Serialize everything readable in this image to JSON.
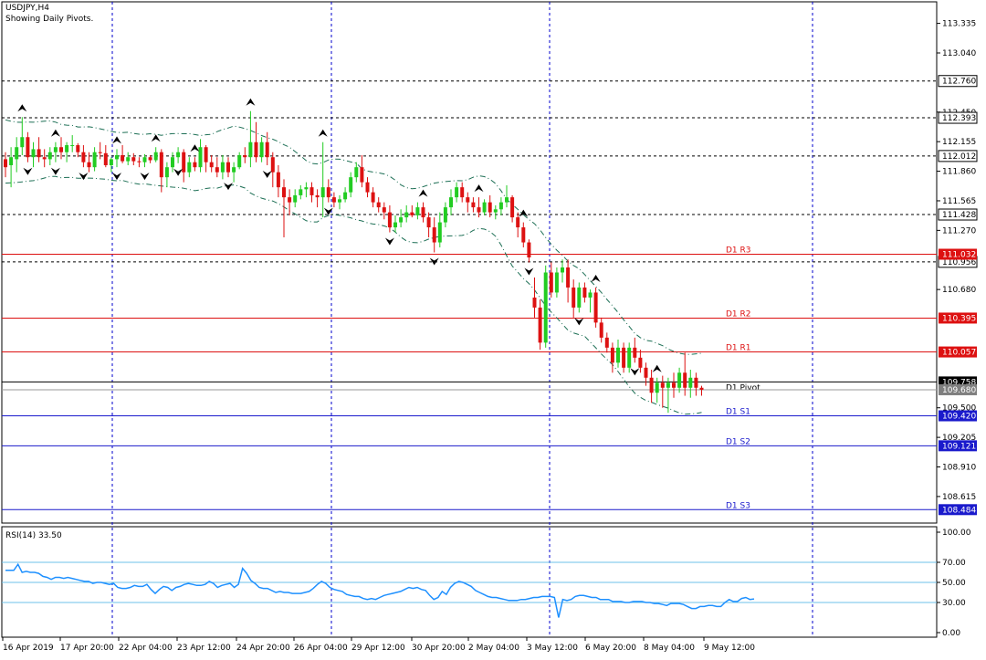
{
  "symbol_label": "USDJPY,H4",
  "indicator_label": "Showing Daily Pivots.",
  "rsi_label": "RSI(14) 33.50",
  "colors": {
    "bull": "#22cc22",
    "bear": "#dd1111",
    "resistance": "#dd1111",
    "support": "#1a1acc",
    "fractal": "#000000",
    "bands": "#1d6f55",
    "rsi_line": "#1e90ff",
    "rsi_levels": "#6cc0e8",
    "grid": "#0000cc",
    "price_tag": "#000000",
    "bid_tag": "#7f7f7f"
  },
  "chart_data": [
    {
      "type": "candlestick",
      "title": "USDJPY,H4",
      "ylim": [
        108.35,
        113.55
      ],
      "price_axis_ticks": [
        "113.335",
        "113.040",
        "112.450",
        "112.155",
        "111.860",
        "111.565",
        "111.270",
        "110.680",
        "109.500",
        "109.205",
        "108.910",
        "108.615"
      ],
      "time_axis_labels": [
        "16 Apr 2019",
        "17 Apr 20:00",
        "22 Apr 04:00",
        "23 Apr 12:00",
        "24 Apr 20:00",
        "26 Apr 04:00",
        "29 Apr 12:00",
        "30 Apr 20:00",
        "2 May 04:00",
        "3 May 12:00",
        "6 May 20:00",
        "8 May 04:00",
        "9 May 12:00"
      ],
      "grid": true,
      "dotted_levels": [
        {
          "value": 112.76,
          "label": "112.760"
        },
        {
          "value": 112.393,
          "label": "112.393"
        },
        {
          "value": 112.012,
          "label": "112.012"
        },
        {
          "value": 111.428,
          "label": "111.428"
        },
        {
          "value": 110.956,
          "label": "110.956"
        }
      ],
      "pivot_levels": [
        {
          "name": "D1  R3",
          "value": 111.032,
          "label": "111.032",
          "kind": "resistance"
        },
        {
          "name": "D1  R2",
          "value": 110.395,
          "label": "110.395",
          "kind": "resistance"
        },
        {
          "name": "D1  R1",
          "value": 110.057,
          "label": "110.057",
          "kind": "resistance"
        },
        {
          "name": "D1  Pivot",
          "value": 109.758,
          "label": "109.758",
          "kind": "pivot"
        },
        {
          "name": "D1  S1",
          "value": 109.42,
          "label": "109.420",
          "kind": "support"
        },
        {
          "name": "D1  S2",
          "value": 109.121,
          "label": "109.121",
          "kind": "support"
        },
        {
          "name": "D1  S3",
          "value": 108.484,
          "label": "108.484",
          "kind": "support"
        }
      ],
      "bid_price": {
        "value": 109.68,
        "label": "109.680"
      },
      "candles": [
        [
          111.98,
          112.05,
          111.8,
          111.9
        ],
        [
          111.92,
          112.1,
          111.7,
          112.0
        ],
        [
          111.98,
          112.2,
          111.85,
          112.1
        ],
        [
          112.1,
          112.4,
          112.02,
          112.2
        ],
        [
          112.2,
          112.25,
          111.95,
          112.0
        ],
        [
          112.0,
          112.15,
          111.9,
          112.08
        ],
        [
          112.08,
          112.2,
          111.95,
          112.0
        ],
        [
          112.0,
          112.08,
          111.9,
          111.98
        ],
        [
          111.98,
          112.1,
          111.92,
          112.05
        ],
        [
          112.05,
          112.15,
          111.95,
          112.1
        ],
        [
          112.1,
          112.2,
          111.98,
          112.05
        ],
        [
          112.05,
          112.15,
          111.95,
          112.12
        ],
        [
          112.12,
          112.22,
          112.05,
          112.12
        ],
        [
          112.12,
          112.14,
          112.0,
          112.05
        ],
        [
          112.05,
          112.12,
          111.9,
          111.95
        ],
        [
          111.95,
          112.05,
          111.85,
          111.9
        ],
        [
          111.9,
          112.1,
          111.86,
          112.05
        ],
        [
          112.05,
          112.15,
          111.98,
          112.04
        ],
        [
          112.04,
          112.12,
          111.9,
          111.92
        ],
        [
          111.92,
          112.0,
          111.85,
          111.98
        ],
        [
          111.98,
          112.08,
          111.9,
          112.02
        ],
        [
          112.02,
          112.12,
          111.94,
          111.96
        ],
        [
          111.96,
          112.05,
          111.92,
          112.0
        ],
        [
          112.0,
          112.04,
          111.92,
          111.96
        ],
        [
          111.96,
          112.0,
          111.9,
          111.95
        ],
        [
          111.95,
          112.03,
          111.9,
          112.0
        ],
        [
          112.0,
          112.02,
          111.94,
          111.97
        ],
        [
          111.97,
          112.1,
          111.95,
          112.05
        ],
        [
          112.05,
          112.08,
          111.65,
          111.8
        ],
        [
          111.8,
          111.95,
          111.7,
          111.9
        ],
        [
          111.9,
          112.05,
          111.85,
          112.0
        ],
        [
          112.0,
          112.1,
          111.94,
          112.05
        ],
        [
          112.05,
          112.08,
          111.75,
          111.85
        ],
        [
          111.85,
          112.0,
          111.8,
          111.95
        ],
        [
          111.95,
          112.0,
          111.86,
          111.9
        ],
        [
          111.9,
          112.18,
          111.85,
          112.1
        ],
        [
          112.1,
          112.12,
          111.85,
          111.95
        ],
        [
          111.95,
          112.02,
          111.85,
          111.9
        ],
        [
          111.9,
          112.0,
          111.8,
          111.85
        ],
        [
          111.85,
          112.02,
          111.78,
          111.95
        ],
        [
          111.95,
          112.0,
          111.8,
          111.85
        ],
        [
          111.85,
          111.95,
          111.75,
          111.9
        ],
        [
          111.9,
          112.05,
          111.88,
          112.02
        ],
        [
          112.02,
          112.1,
          111.94,
          112.0
        ],
        [
          112.0,
          112.46,
          111.9,
          112.15
        ],
        [
          112.15,
          112.35,
          111.95,
          112.0
        ],
        [
          112.0,
          112.2,
          111.95,
          112.15
        ],
        [
          112.15,
          112.25,
          111.92,
          112.0
        ],
        [
          112.0,
          112.05,
          111.7,
          111.85
        ],
        [
          111.85,
          111.92,
          111.6,
          111.7
        ],
        [
          111.7,
          111.78,
          111.2,
          111.6
        ],
        [
          111.6,
          111.68,
          111.42,
          111.55
        ],
        [
          111.55,
          111.68,
          111.5,
          111.62
        ],
        [
          111.62,
          111.72,
          111.58,
          111.68
        ],
        [
          111.68,
          111.75,
          111.6,
          111.7
        ],
        [
          111.7,
          111.75,
          111.55,
          111.62
        ],
        [
          111.62,
          111.68,
          111.5,
          111.6
        ],
        [
          111.6,
          112.15,
          111.4,
          111.7
        ],
        [
          111.7,
          111.78,
          111.55,
          111.6
        ],
        [
          111.6,
          111.65,
          111.5,
          111.55
        ],
        [
          111.55,
          111.62,
          111.48,
          111.58
        ],
        [
          111.58,
          111.7,
          111.55,
          111.65
        ],
        [
          111.65,
          111.85,
          111.6,
          111.8
        ],
        [
          111.8,
          111.95,
          111.75,
          111.9
        ],
        [
          111.9,
          112.02,
          111.7,
          111.75
        ],
        [
          111.75,
          111.8,
          111.6,
          111.65
        ],
        [
          111.65,
          111.7,
          111.5,
          111.55
        ],
        [
          111.55,
          111.6,
          111.45,
          111.5
        ],
        [
          111.5,
          111.55,
          111.38,
          111.45
        ],
        [
          111.45,
          111.52,
          111.25,
          111.3
        ],
        [
          111.3,
          111.42,
          111.25,
          111.35
        ],
        [
          111.35,
          111.48,
          111.3,
          111.4
        ],
        [
          111.4,
          111.52,
          111.35,
          111.45
        ],
        [
          111.45,
          111.52,
          111.4,
          111.42
        ],
        [
          111.42,
          111.55,
          111.38,
          111.5
        ],
        [
          111.5,
          111.55,
          111.35,
          111.4
        ],
        [
          111.4,
          111.45,
          111.2,
          111.3
        ],
        [
          111.3,
          111.4,
          111.05,
          111.15
        ],
        [
          111.15,
          111.45,
          111.1,
          111.35
        ],
        [
          111.35,
          111.55,
          111.3,
          111.5
        ],
        [
          111.5,
          111.68,
          111.42,
          111.6
        ],
        [
          111.6,
          111.75,
          111.55,
          111.7
        ],
        [
          111.7,
          111.75,
          111.55,
          111.6
        ],
        [
          111.6,
          111.65,
          111.45,
          111.55
        ],
        [
          111.55,
          111.6,
          111.45,
          111.5
        ],
        [
          111.5,
          111.6,
          111.4,
          111.45
        ],
        [
          111.45,
          111.58,
          111.42,
          111.55
        ],
        [
          111.55,
          111.62,
          111.4,
          111.45
        ],
        [
          111.45,
          111.52,
          111.38,
          111.48
        ],
        [
          111.48,
          111.6,
          111.42,
          111.55
        ],
        [
          111.55,
          111.72,
          111.5,
          111.6
        ],
        [
          111.6,
          111.62,
          111.35,
          111.4
        ],
        [
          111.4,
          111.45,
          111.2,
          111.3
        ],
        [
          111.3,
          111.35,
          111.1,
          111.15
        ],
        [
          111.15,
          111.18,
          110.95,
          111.0
        ],
        [
          110.6,
          110.8,
          110.4,
          110.5
        ],
        [
          110.5,
          110.58,
          110.08,
          110.15
        ],
        [
          110.15,
          110.92,
          110.1,
          110.85
        ],
        [
          110.85,
          110.95,
          110.6,
          110.65
        ],
        [
          110.65,
          110.9,
          110.6,
          110.85
        ],
        [
          110.85,
          110.98,
          110.75,
          110.9
        ],
        [
          110.9,
          110.98,
          110.55,
          110.7
        ],
        [
          110.7,
          110.78,
          110.4,
          110.5
        ],
        [
          110.5,
          110.75,
          110.45,
          110.7
        ],
        [
          110.7,
          110.75,
          110.55,
          110.6
        ],
        [
          110.6,
          110.68,
          110.45,
          110.65
        ],
        [
          110.65,
          110.7,
          110.3,
          110.35
        ],
        [
          110.35,
          110.4,
          110.15,
          110.2
        ],
        [
          110.2,
          110.25,
          110.05,
          110.1
        ],
        [
          110.1,
          110.15,
          109.85,
          109.95
        ],
        [
          109.95,
          110.18,
          109.9,
          110.1
        ],
        [
          110.1,
          110.15,
          109.85,
          109.9
        ],
        [
          109.9,
          110.15,
          109.85,
          110.1
        ],
        [
          110.1,
          110.2,
          109.95,
          110.0
        ],
        [
          110.0,
          110.08,
          109.85,
          109.9
        ],
        [
          109.9,
          109.95,
          109.72,
          109.8
        ],
        [
          109.8,
          109.88,
          109.55,
          109.65
        ],
        [
          109.65,
          109.8,
          109.55,
          109.75
        ],
        [
          109.75,
          109.82,
          109.5,
          109.7
        ],
        [
          109.7,
          109.8,
          109.45,
          109.75
        ],
        [
          109.75,
          109.85,
          109.6,
          109.7
        ],
        [
          109.7,
          109.9,
          109.65,
          109.85
        ],
        [
          109.85,
          110.05,
          109.62,
          109.7
        ],
        [
          109.7,
          109.88,
          109.6,
          109.8
        ],
        [
          109.8,
          109.85,
          109.62,
          109.7
        ],
        [
          109.7,
          109.72,
          109.62,
          109.68
        ]
      ],
      "upper_fractals": [
        3,
        9,
        20,
        27,
        34,
        44,
        57,
        75,
        85,
        93,
        106,
        117,
        130
      ],
      "lower_fractals": [
        4,
        9,
        14,
        20,
        25,
        31,
        40,
        47,
        58,
        69,
        77,
        94,
        103,
        113,
        126,
        133
      ],
      "rsi": {
        "ylim": [
          0,
          100
        ],
        "levels": [
          70,
          50,
          30
        ],
        "axis_ticks": [
          "100.00",
          "70.00",
          "50.00",
          "30.00",
          "0.00"
        ],
        "values": [
          62,
          62,
          62,
          68,
          60,
          61,
          60,
          60,
          59,
          56,
          55,
          53,
          55,
          55,
          54,
          55,
          54,
          53,
          52,
          51,
          51,
          49,
          50,
          50,
          49,
          48,
          49,
          45,
          44,
          44,
          45,
          47,
          46,
          46,
          48,
          43,
          39,
          43,
          46,
          45,
          42,
          45,
          46,
          48,
          49,
          48,
          47,
          47,
          48,
          51,
          49,
          45,
          47,
          48,
          49,
          45,
          48,
          64,
          59,
          52,
          49,
          45,
          44,
          44,
          42,
          40,
          41,
          40,
          40,
          39,
          39,
          39,
          40,
          41,
          44,
          48,
          51,
          49,
          45,
          43,
          42,
          41,
          38,
          37,
          36,
          36,
          34,
          33,
          34,
          33,
          35,
          37,
          38,
          39,
          40,
          41,
          43,
          45,
          44,
          45,
          43,
          42,
          37,
          33,
          35,
          41,
          38,
          45,
          49,
          51,
          50,
          48,
          46,
          42,
          40,
          38,
          36,
          35,
          35,
          34,
          33,
          32,
          32,
          32,
          33,
          33,
          34,
          35,
          35,
          36,
          36,
          36,
          35,
          15,
          33,
          32,
          33,
          36,
          37,
          37,
          36,
          35,
          35,
          33,
          33,
          33,
          31,
          31,
          31,
          30,
          30,
          31,
          31,
          31,
          30,
          30,
          29,
          29,
          28,
          27,
          29,
          29,
          29,
          28,
          26,
          24,
          24,
          26,
          26,
          27,
          27,
          26,
          26,
          30,
          33,
          31,
          31,
          34,
          35,
          33,
          33.5
        ]
      }
    }
  ]
}
